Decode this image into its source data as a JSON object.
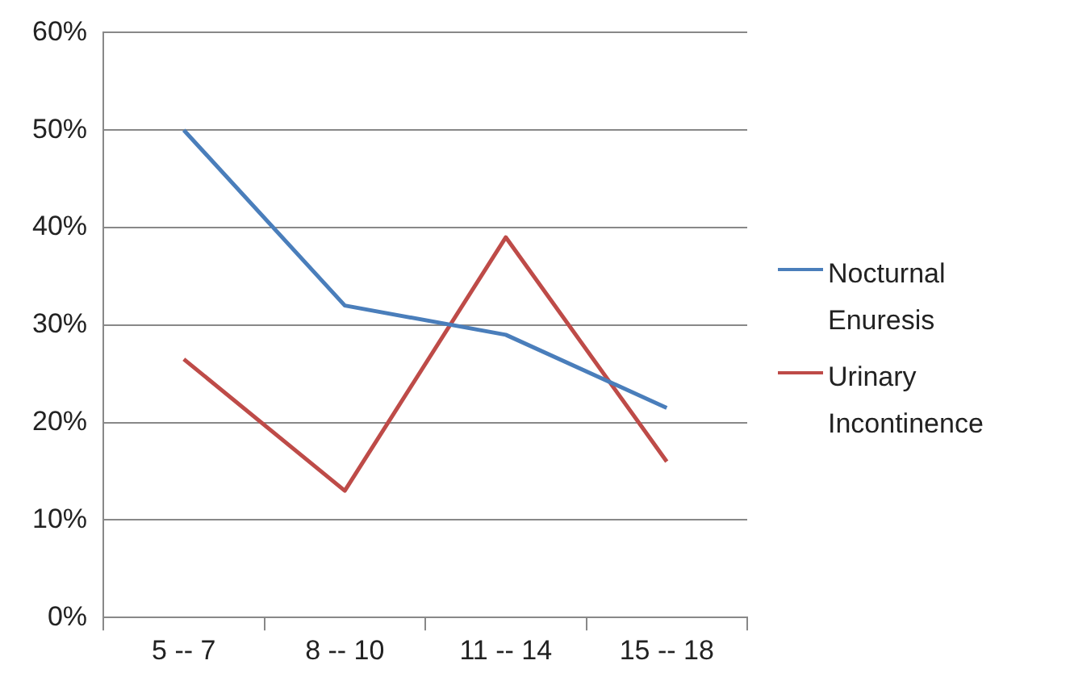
{
  "chart_data": {
    "type": "line",
    "categories": [
      "5 -- 7",
      "8 -- 10",
      "11 -- 14",
      "15 -- 18"
    ],
    "series": [
      {
        "name": "Nocturnal Enuresis",
        "color": "#4a7ebb",
        "values": [
          50,
          32,
          29,
          21.5
        ]
      },
      {
        "name": "Urinary Incontinence",
        "color": "#be4b48",
        "values": [
          26.5,
          13,
          39,
          16
        ]
      }
    ],
    "ylim": [
      0,
      60
    ],
    "yticks": [
      {
        "value": 0,
        "label": "0%"
      },
      {
        "value": 10,
        "label": "10%"
      },
      {
        "value": 20,
        "label": "20%"
      },
      {
        "value": 30,
        "label": "30%"
      },
      {
        "value": 40,
        "label": "40%"
      },
      {
        "value": 50,
        "label": "50%"
      },
      {
        "value": 60,
        "label": "60%"
      }
    ],
    "grid": "y",
    "legend": "right",
    "marker": "none",
    "line_style": "solid"
  }
}
